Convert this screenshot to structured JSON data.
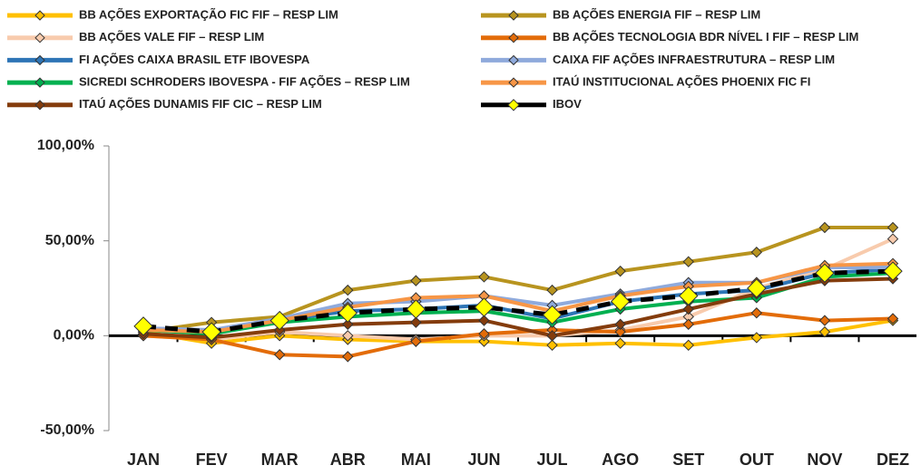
{
  "chart_data": {
    "type": "line",
    "categories": [
      "JAN",
      "FEV",
      "MAR",
      "ABR",
      "MAI",
      "JUN",
      "JUL",
      "AGO",
      "SET",
      "OUT",
      "NOV",
      "DEZ"
    ],
    "ylim": [
      -50,
      100
    ],
    "yticks": [
      {
        "value": -50,
        "label": "-50,00%"
      },
      {
        "value": 0,
        "label": "0,00%"
      },
      {
        "value": 50,
        "label": "50,00%"
      },
      {
        "value": 100,
        "label": "100,00%"
      }
    ],
    "legend": "top",
    "series": [
      {
        "name": "BB AÇÕES EXPORTAÇÃO FIC FIF – RESP LIM",
        "color": "#ffc000",
        "values": [
          2,
          -4,
          0,
          -2,
          -3,
          -3,
          -5,
          -4,
          -5,
          -1,
          2,
          8
        ]
      },
      {
        "name": "BB AÇÕES ENERGIA FIF – RESP LIM",
        "color": "#b8941f",
        "values": [
          2,
          7,
          10,
          24,
          29,
          31,
          24,
          34,
          39,
          44,
          57,
          57
        ]
      },
      {
        "name": "BB AÇÕES VALE FIF – RESP LIM",
        "color": "#f8cbad",
        "values": [
          0,
          -2,
          2,
          0,
          -2,
          0,
          0,
          3,
          10,
          25,
          35,
          51
        ]
      },
      {
        "name": "BB AÇÕES TECNOLOGIA BDR NÍVEL I FIF – RESP LIM",
        "color": "#e36c09",
        "values": [
          0,
          -2,
          -10,
          -11,
          -3,
          1,
          3,
          2,
          6,
          12,
          8,
          9
        ]
      },
      {
        "name": "FI AÇÕES CAIXA BRASIL ETF IBOVESPA",
        "color": "#2e75b6",
        "values": [
          4,
          2,
          8,
          13,
          14,
          16,
          9,
          18,
          22,
          24,
          33,
          35
        ]
      },
      {
        "name": "CAIXA FIF AÇÕES INFRAESTRUTURA – RESP LIM",
        "color": "#8faadc",
        "values": [
          4,
          3,
          9,
          17,
          18,
          21,
          16,
          22,
          28,
          28,
          36,
          36
        ]
      },
      {
        "name": "SICREDI SCHRODERS IBOVESPA - FIF AÇÕES – RESP LIM",
        "color": "#00b050",
        "values": [
          3,
          1,
          7,
          10,
          12,
          13,
          7,
          14,
          18,
          20,
          31,
          33
        ]
      },
      {
        "name": "ITAÚ INSTITUCIONAL AÇÕES PHOENIX FIC FI",
        "color": "#f79646",
        "values": [
          3,
          2,
          8,
          15,
          20,
          21,
          13,
          21,
          26,
          28,
          37,
          38
        ]
      },
      {
        "name": "ITAÚ AÇÕES DUNAMIS FIF CIC – RESP LIM",
        "color": "#843c0c",
        "values": [
          1,
          -1,
          3,
          6,
          7,
          8,
          0,
          6,
          14,
          22,
          29,
          30
        ]
      },
      {
        "name": "IBOV",
        "color": "#000000",
        "values": [
          5,
          2,
          8,
          12,
          14,
          15,
          11,
          18,
          21,
          25,
          33,
          34
        ]
      }
    ]
  }
}
